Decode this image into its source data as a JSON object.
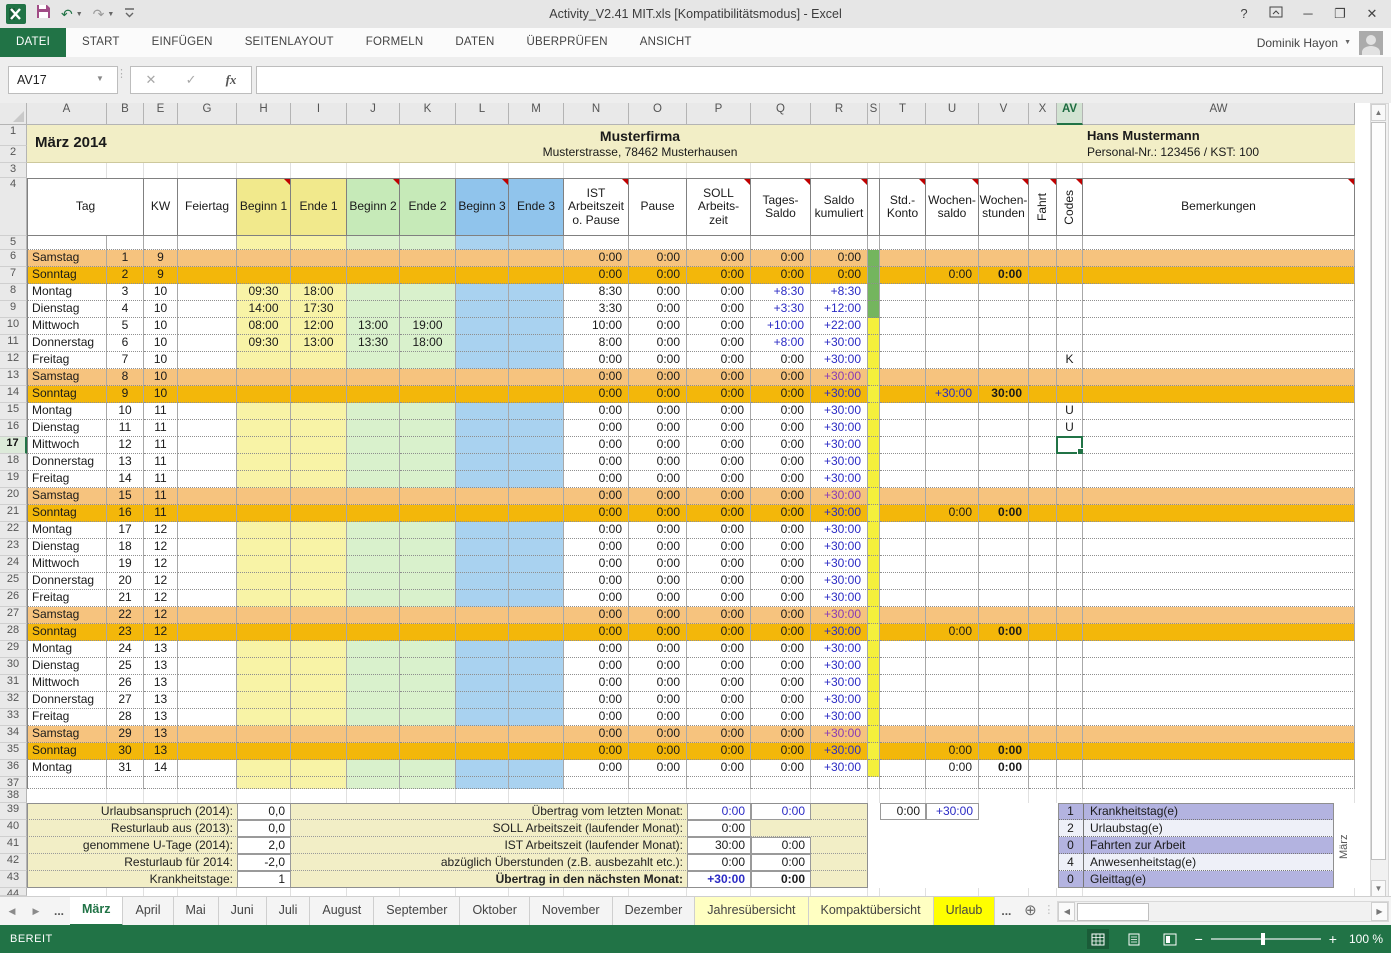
{
  "title_bar": {
    "title": "Activity_V2.41 MIT.xls  [Kompatibilitätsmodus] - Excel",
    "user": "Dominik Hayon"
  },
  "icons": {
    "undo": "↶",
    "redo": "↷",
    "caret_down": "▼",
    "help": "?",
    "minimize": "─",
    "maximize": "❐",
    "close": "✕",
    "nav_left": "◀",
    "nav_right": "▶",
    "scroll_up": "▲",
    "scroll_down": "▼",
    "cancel": "✕",
    "enter": "✓",
    "fx": "fx",
    "add_sheet": "⊕",
    "dots": "⋮",
    "minus": "−",
    "plus": "+"
  },
  "ribbon": {
    "tabs": [
      "DATEI",
      "START",
      "EINFÜGEN",
      "SEITENLAYOUT",
      "FORMELN",
      "DATEN",
      "ÜBERPRÜFEN",
      "ANSICHT"
    ],
    "active_tab": "DATEI"
  },
  "formula_bar": {
    "name_box": "AV17",
    "formula": ""
  },
  "grid": {
    "columns": [
      "A",
      "B",
      "E",
      "G",
      "H",
      "I",
      "J",
      "K",
      "L",
      "M",
      "N",
      "O",
      "P",
      "Q",
      "R",
      "S",
      "T",
      "U",
      "V",
      "X",
      "AV",
      "AW"
    ],
    "selected_column": "AV",
    "selected_row": 17,
    "first_row": 1,
    "last_row": 44
  },
  "sheet_header": {
    "month": "März 2014",
    "company": "Musterfirma",
    "address": "Musterstrasse, 78462 Musterhausen",
    "employee": "Hans Mustermann",
    "personal": "Personal-Nr.: 123456 / KST: 100"
  },
  "table_headers": {
    "tag": "Tag",
    "kw": "KW",
    "feiertag": "Feiertag",
    "b1": "Beginn 1",
    "e1": "Ende 1",
    "b2": "Beginn 2",
    "e2": "Ende 2",
    "b3": "Beginn 3",
    "e3": "Ende 3",
    "ist": "IST Arbeitszeit o. Pause",
    "pause": "Pause",
    "soll": "SOLL Arbeits- zeit",
    "tages": "Tages- Saldo",
    "saldo": "Saldo kumuliert",
    "std": "Std.- Konto",
    "wsaldo": "Wochen- saldo",
    "wstunden": "Wochen- stunden",
    "fahrt": "Fahrt",
    "codes": "Codes",
    "bem": "Bemerkungen"
  },
  "days": [
    {
      "n": 6,
      "day": "Samstag",
      "d": 1,
      "kw": 9,
      "t": "sat",
      "ist": "0:00",
      "pause": "0:00",
      "soll": "0:00",
      "tag": "0:00",
      "sal": "0:00"
    },
    {
      "n": 7,
      "day": "Sonntag",
      "d": 2,
      "kw": 9,
      "t": "sun",
      "ist": "0:00",
      "pause": "0:00",
      "soll": "0:00",
      "tag": "0:00",
      "sal": "0:00",
      "ws": "0:00",
      "wh": "0:00"
    },
    {
      "n": 8,
      "day": "Montag",
      "d": 3,
      "kw": 10,
      "t": "wd",
      "b1": "09:30",
      "e1": "18:00",
      "ist": "8:30",
      "pause": "0:00",
      "soll": "0:00",
      "tag": "+8:30",
      "sal": "+8:30"
    },
    {
      "n": 9,
      "day": "Dienstag",
      "d": 4,
      "kw": 10,
      "t": "wd",
      "b1": "14:00",
      "e1": "17:30",
      "ist": "3:30",
      "pause": "0:00",
      "soll": "0:00",
      "tag": "+3:30",
      "sal": "+12:00"
    },
    {
      "n": 10,
      "day": "Mittwoch",
      "d": 5,
      "kw": 10,
      "t": "wd",
      "b1": "08:00",
      "e1": "12:00",
      "b2": "13:00",
      "e2": "19:00",
      "ist": "10:00",
      "pause": "0:00",
      "soll": "0:00",
      "tag": "+10:00",
      "sal": "+22:00"
    },
    {
      "n": 11,
      "day": "Donnerstag",
      "d": 6,
      "kw": 10,
      "t": "wd",
      "b1": "09:30",
      "e1": "13:00",
      "b2": "13:30",
      "e2": "18:00",
      "ist": "8:00",
      "pause": "0:00",
      "soll": "0:00",
      "tag": "+8:00",
      "sal": "+30:00"
    },
    {
      "n": 12,
      "day": "Freitag",
      "d": 7,
      "kw": 10,
      "t": "wd",
      "ist": "0:00",
      "pause": "0:00",
      "soll": "0:00",
      "tag": "0:00",
      "sal": "+30:00",
      "code": "K"
    },
    {
      "n": 13,
      "day": "Samstag",
      "d": 8,
      "kw": 10,
      "t": "sat",
      "ist": "0:00",
      "pause": "0:00",
      "soll": "0:00",
      "tag": "0:00",
      "sal": "+30:00"
    },
    {
      "n": 14,
      "day": "Sonntag",
      "d": 9,
      "kw": 10,
      "t": "sun",
      "ist": "0:00",
      "pause": "0:00",
      "soll": "0:00",
      "tag": "0:00",
      "sal": "+30:00",
      "ws": "+30:00",
      "wh": "30:00"
    },
    {
      "n": 15,
      "day": "Montag",
      "d": 10,
      "kw": 11,
      "t": "wd",
      "ist": "0:00",
      "pause": "0:00",
      "soll": "0:00",
      "tag": "0:00",
      "sal": "+30:00",
      "code": "U"
    },
    {
      "n": 16,
      "day": "Dienstag",
      "d": 11,
      "kw": 11,
      "t": "wd",
      "ist": "0:00",
      "pause": "0:00",
      "soll": "0:00",
      "tag": "0:00",
      "sal": "+30:00",
      "code": "U"
    },
    {
      "n": 17,
      "day": "Mittwoch",
      "d": 12,
      "kw": 11,
      "t": "wd",
      "ist": "0:00",
      "pause": "0:00",
      "soll": "0:00",
      "tag": "0:00",
      "sal": "+30:00",
      "sel": true
    },
    {
      "n": 18,
      "day": "Donnerstag",
      "d": 13,
      "kw": 11,
      "t": "wd",
      "ist": "0:00",
      "pause": "0:00",
      "soll": "0:00",
      "tag": "0:00",
      "sal": "+30:00"
    },
    {
      "n": 19,
      "day": "Freitag",
      "d": 14,
      "kw": 11,
      "t": "wd",
      "ist": "0:00",
      "pause": "0:00",
      "soll": "0:00",
      "tag": "0:00",
      "sal": "+30:00"
    },
    {
      "n": 20,
      "day": "Samstag",
      "d": 15,
      "kw": 11,
      "t": "sat",
      "ist": "0:00",
      "pause": "0:00",
      "soll": "0:00",
      "tag": "0:00",
      "sal": "+30:00"
    },
    {
      "n": 21,
      "day": "Sonntag",
      "d": 16,
      "kw": 11,
      "t": "sun",
      "ist": "0:00",
      "pause": "0:00",
      "soll": "0:00",
      "tag": "0:00",
      "sal": "+30:00",
      "ws": "0:00",
      "wh": "0:00"
    },
    {
      "n": 22,
      "day": "Montag",
      "d": 17,
      "kw": 12,
      "t": "wd",
      "ist": "0:00",
      "pause": "0:00",
      "soll": "0:00",
      "tag": "0:00",
      "sal": "+30:00"
    },
    {
      "n": 23,
      "day": "Dienstag",
      "d": 18,
      "kw": 12,
      "t": "wd",
      "ist": "0:00",
      "pause": "0:00",
      "soll": "0:00",
      "tag": "0:00",
      "sal": "+30:00"
    },
    {
      "n": 24,
      "day": "Mittwoch",
      "d": 19,
      "kw": 12,
      "t": "wd",
      "ist": "0:00",
      "pause": "0:00",
      "soll": "0:00",
      "tag": "0:00",
      "sal": "+30:00"
    },
    {
      "n": 25,
      "day": "Donnerstag",
      "d": 20,
      "kw": 12,
      "t": "wd",
      "ist": "0:00",
      "pause": "0:00",
      "soll": "0:00",
      "tag": "0:00",
      "sal": "+30:00"
    },
    {
      "n": 26,
      "day": "Freitag",
      "d": 21,
      "kw": 12,
      "t": "wd",
      "ist": "0:00",
      "pause": "0:00",
      "soll": "0:00",
      "tag": "0:00",
      "sal": "+30:00"
    },
    {
      "n": 27,
      "day": "Samstag",
      "d": 22,
      "kw": 12,
      "t": "sat",
      "ist": "0:00",
      "pause": "0:00",
      "soll": "0:00",
      "tag": "0:00",
      "sal": "+30:00"
    },
    {
      "n": 28,
      "day": "Sonntag",
      "d": 23,
      "kw": 12,
      "t": "sun",
      "ist": "0:00",
      "pause": "0:00",
      "soll": "0:00",
      "tag": "0:00",
      "sal": "+30:00",
      "ws": "0:00",
      "wh": "0:00"
    },
    {
      "n": 29,
      "day": "Montag",
      "d": 24,
      "kw": 13,
      "t": "wd",
      "ist": "0:00",
      "pause": "0:00",
      "soll": "0:00",
      "tag": "0:00",
      "sal": "+30:00"
    },
    {
      "n": 30,
      "day": "Dienstag",
      "d": 25,
      "kw": 13,
      "t": "wd",
      "ist": "0:00",
      "pause": "0:00",
      "soll": "0:00",
      "tag": "0:00",
      "sal": "+30:00"
    },
    {
      "n": 31,
      "day": "Mittwoch",
      "d": 26,
      "kw": 13,
      "t": "wd",
      "ist": "0:00",
      "pause": "0:00",
      "soll": "0:00",
      "tag": "0:00",
      "sal": "+30:00"
    },
    {
      "n": 32,
      "day": "Donnerstag",
      "d": 27,
      "kw": 13,
      "t": "wd",
      "ist": "0:00",
      "pause": "0:00",
      "soll": "0:00",
      "tag": "0:00",
      "sal": "+30:00"
    },
    {
      "n": 33,
      "day": "Freitag",
      "d": 28,
      "kw": 13,
      "t": "wd",
      "ist": "0:00",
      "pause": "0:00",
      "soll": "0:00",
      "tag": "0:00",
      "sal": "+30:00"
    },
    {
      "n": 34,
      "day": "Samstag",
      "d": 29,
      "kw": 13,
      "t": "sat",
      "ist": "0:00",
      "pause": "0:00",
      "soll": "0:00",
      "tag": "0:00",
      "sal": "+30:00"
    },
    {
      "n": 35,
      "day": "Sonntag",
      "d": 30,
      "kw": 13,
      "t": "sun",
      "ist": "0:00",
      "pause": "0:00",
      "soll": "0:00",
      "tag": "0:00",
      "sal": "+30:00",
      "ws": "0:00",
      "wh": "0:00"
    },
    {
      "n": 36,
      "day": "Montag",
      "d": 31,
      "kw": 14,
      "t": "wd",
      "ist": "0:00",
      "pause": "0:00",
      "soll": "0:00",
      "tag": "0:00",
      "sal": "+30:00",
      "ws": "0:00",
      "wh": "0:00"
    }
  ],
  "summary_left": [
    {
      "label": "Urlaubsanspruch (2014):",
      "value": "0,0"
    },
    {
      "label": "Resturlaub aus (2013):",
      "value": "0,0"
    },
    {
      "label": "genommene U-Tage (2014):",
      "value": "2,0"
    },
    {
      "label": "Resturlaub für 2014:",
      "value": "-2,0"
    },
    {
      "label": "Krankheitstage:",
      "value": "1"
    }
  ],
  "summary_mid": [
    {
      "label": "Übertrag vom letzten Monat:",
      "v1": "0:00",
      "v2": "0:00"
    },
    {
      "label": "SOLL Arbeitszeit (laufender Monat):",
      "v1": "0:00",
      "v2": ""
    },
    {
      "label": "IST Arbeitszeit (laufender Monat):",
      "v1": "30:00",
      "v2": "0:00"
    },
    {
      "label": "abzüglich Überstunden (z.B. ausbezahlt etc.):",
      "v1": "0:00",
      "v2": "0:00"
    },
    {
      "label": "Übertrag in den nächsten Monat:",
      "v1": "+30:00",
      "v2": "0:00"
    }
  ],
  "summary_box": {
    "v1": "0:00",
    "v2": "+30:00"
  },
  "legend": {
    "rows": [
      {
        "count": "1",
        "label": "Krankheitstag(e)"
      },
      {
        "count": "2",
        "label": "Urlaubstag(e)"
      },
      {
        "count": "0",
        "label": "Fahrten zur Arbeit"
      },
      {
        "count": "4",
        "label": "Anwesenheitstag(e)"
      },
      {
        "count": "0",
        "label": "Gleittag(e)"
      }
    ],
    "month_tag": "März"
  },
  "sheet_tabs": {
    "overflow": "...",
    "tabs": [
      {
        "label": "März",
        "state": "active"
      },
      {
        "label": "April",
        "state": "normal"
      },
      {
        "label": "Mai",
        "state": "normal"
      },
      {
        "label": "Juni",
        "state": "normal"
      },
      {
        "label": "Juli",
        "state": "normal"
      },
      {
        "label": "August",
        "state": "normal"
      },
      {
        "label": "September",
        "state": "normal"
      },
      {
        "label": "Oktober",
        "state": "normal"
      },
      {
        "label": "November",
        "state": "normal"
      },
      {
        "label": "Dezember",
        "state": "normal"
      },
      {
        "label": "Jahresübersicht",
        "state": "ylight"
      },
      {
        "label": "Kompaktübersicht",
        "state": "ylight"
      },
      {
        "label": "Urlaub",
        "state": "ybright"
      }
    ]
  },
  "status_bar": {
    "ready": "BEREIT",
    "zoom": "100 %"
  }
}
